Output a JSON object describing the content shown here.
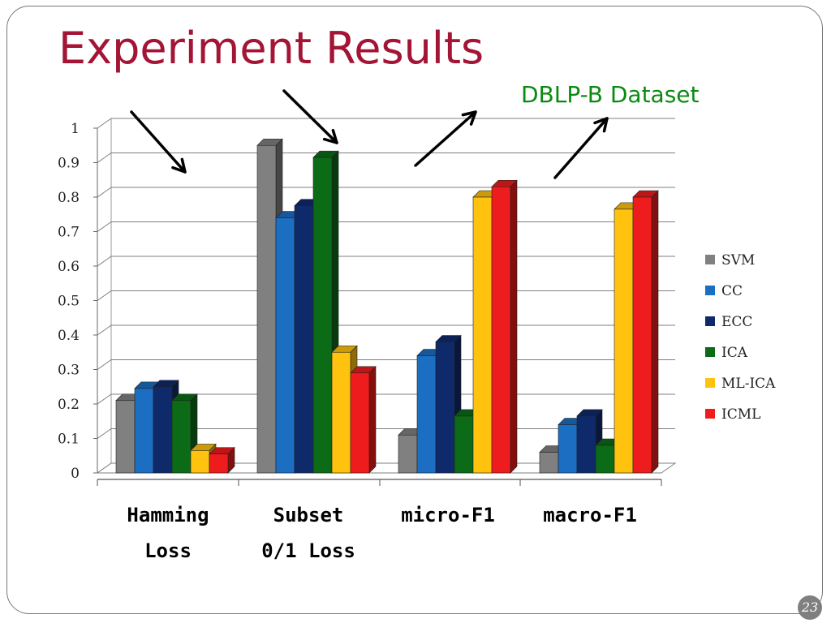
{
  "slide": {
    "title": "Experiment Results",
    "subtitle": "DBLP-B Dataset",
    "page_number": "23"
  },
  "colors": {
    "title": "#a31435",
    "subtitle": "#0b8a12",
    "SVM": "#808080",
    "CC": "#1b6ec2",
    "ECC": "#0f2a6b",
    "ICA": "#0b6b17",
    "ML-ICA": "#ffc20e",
    "ICML": "#ee1c1c"
  },
  "chart_data": {
    "type": "bar",
    "title": "",
    "xlabel": "",
    "ylabel": "",
    "ylim": [
      0,
      1
    ],
    "yticks": [
      "0",
      "0.1",
      "0.2",
      "0.3",
      "0.4",
      "0.5",
      "0.6",
      "0.7",
      "0.8",
      "0.9",
      "1"
    ],
    "grid": true,
    "legend_position": "right",
    "categories": [
      [
        "Hamming",
        "Loss"
      ],
      [
        "Subset",
        "0/1 Loss"
      ],
      [
        "micro-F1"
      ],
      [
        "macro-F1"
      ]
    ],
    "series": [
      {
        "name": "SVM",
        "values": [
          0.21,
          0.95,
          0.11,
          0.06
        ]
      },
      {
        "name": "CC",
        "values": [
          0.245,
          0.74,
          0.34,
          0.14
        ]
      },
      {
        "name": "ECC",
        "values": [
          0.25,
          0.775,
          0.38,
          0.165
        ]
      },
      {
        "name": "ICA",
        "values": [
          0.21,
          0.915,
          0.165,
          0.08
        ]
      },
      {
        "name": "ML-ICA",
        "values": [
          0.065,
          0.35,
          0.8,
          0.765
        ]
      },
      {
        "name": "ICML",
        "values": [
          0.055,
          0.29,
          0.83,
          0.8
        ]
      }
    ]
  }
}
